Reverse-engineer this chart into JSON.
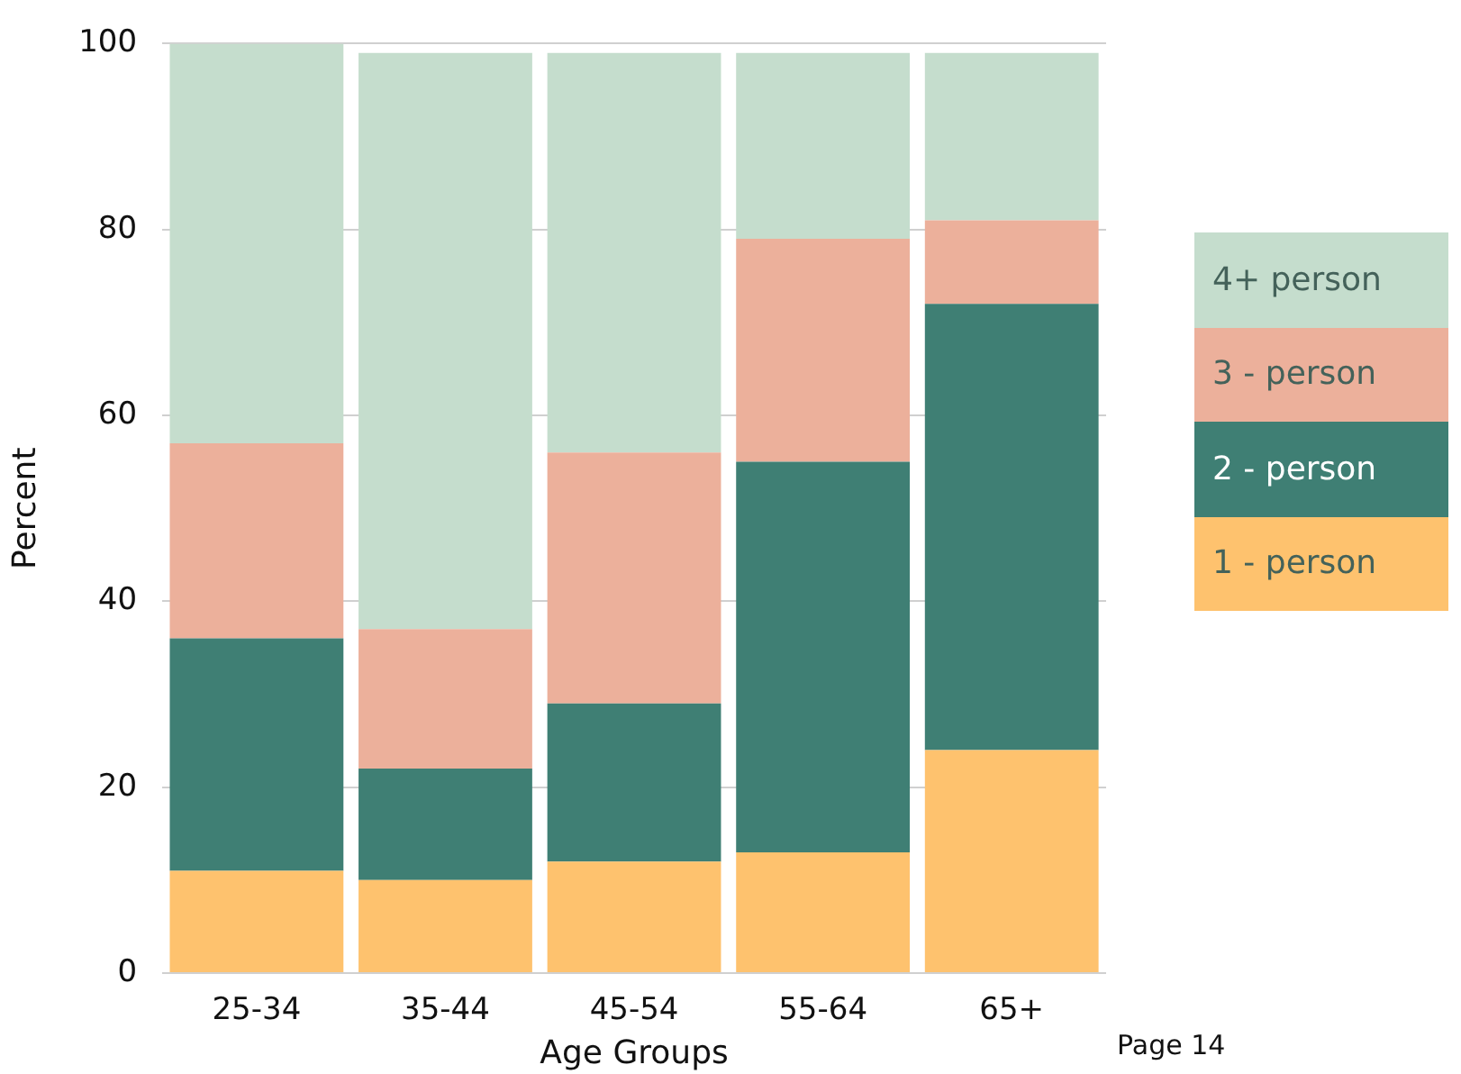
{
  "chart_data": {
    "type": "bar",
    "stacked": true,
    "xlabel": "Age Groups",
    "ylabel": "Percent",
    "categories": [
      "25-34",
      "35-44",
      "45-54",
      "55-64",
      "65+"
    ],
    "series": [
      {
        "name": "1 - person",
        "color": "#fec26e",
        "values": [
          11,
          10,
          12,
          13,
          24
        ]
      },
      {
        "name": "2 - person",
        "color": "#3f7f74",
        "values": [
          25,
          12,
          17,
          42,
          48
        ]
      },
      {
        "name": "3 - person",
        "color": "#ecb09b",
        "values": [
          21,
          15,
          27,
          24,
          9
        ]
      },
      {
        "name": "4+ person",
        "color": "#c5ddcd",
        "values": [
          43,
          62,
          43,
          20,
          18
        ]
      }
    ],
    "ylim": [
      0,
      100
    ],
    "yticks": [
      0,
      20,
      40,
      60,
      80,
      100
    ],
    "grid": "y",
    "legend": "right",
    "annotations": [
      "Page 14"
    ]
  }
}
